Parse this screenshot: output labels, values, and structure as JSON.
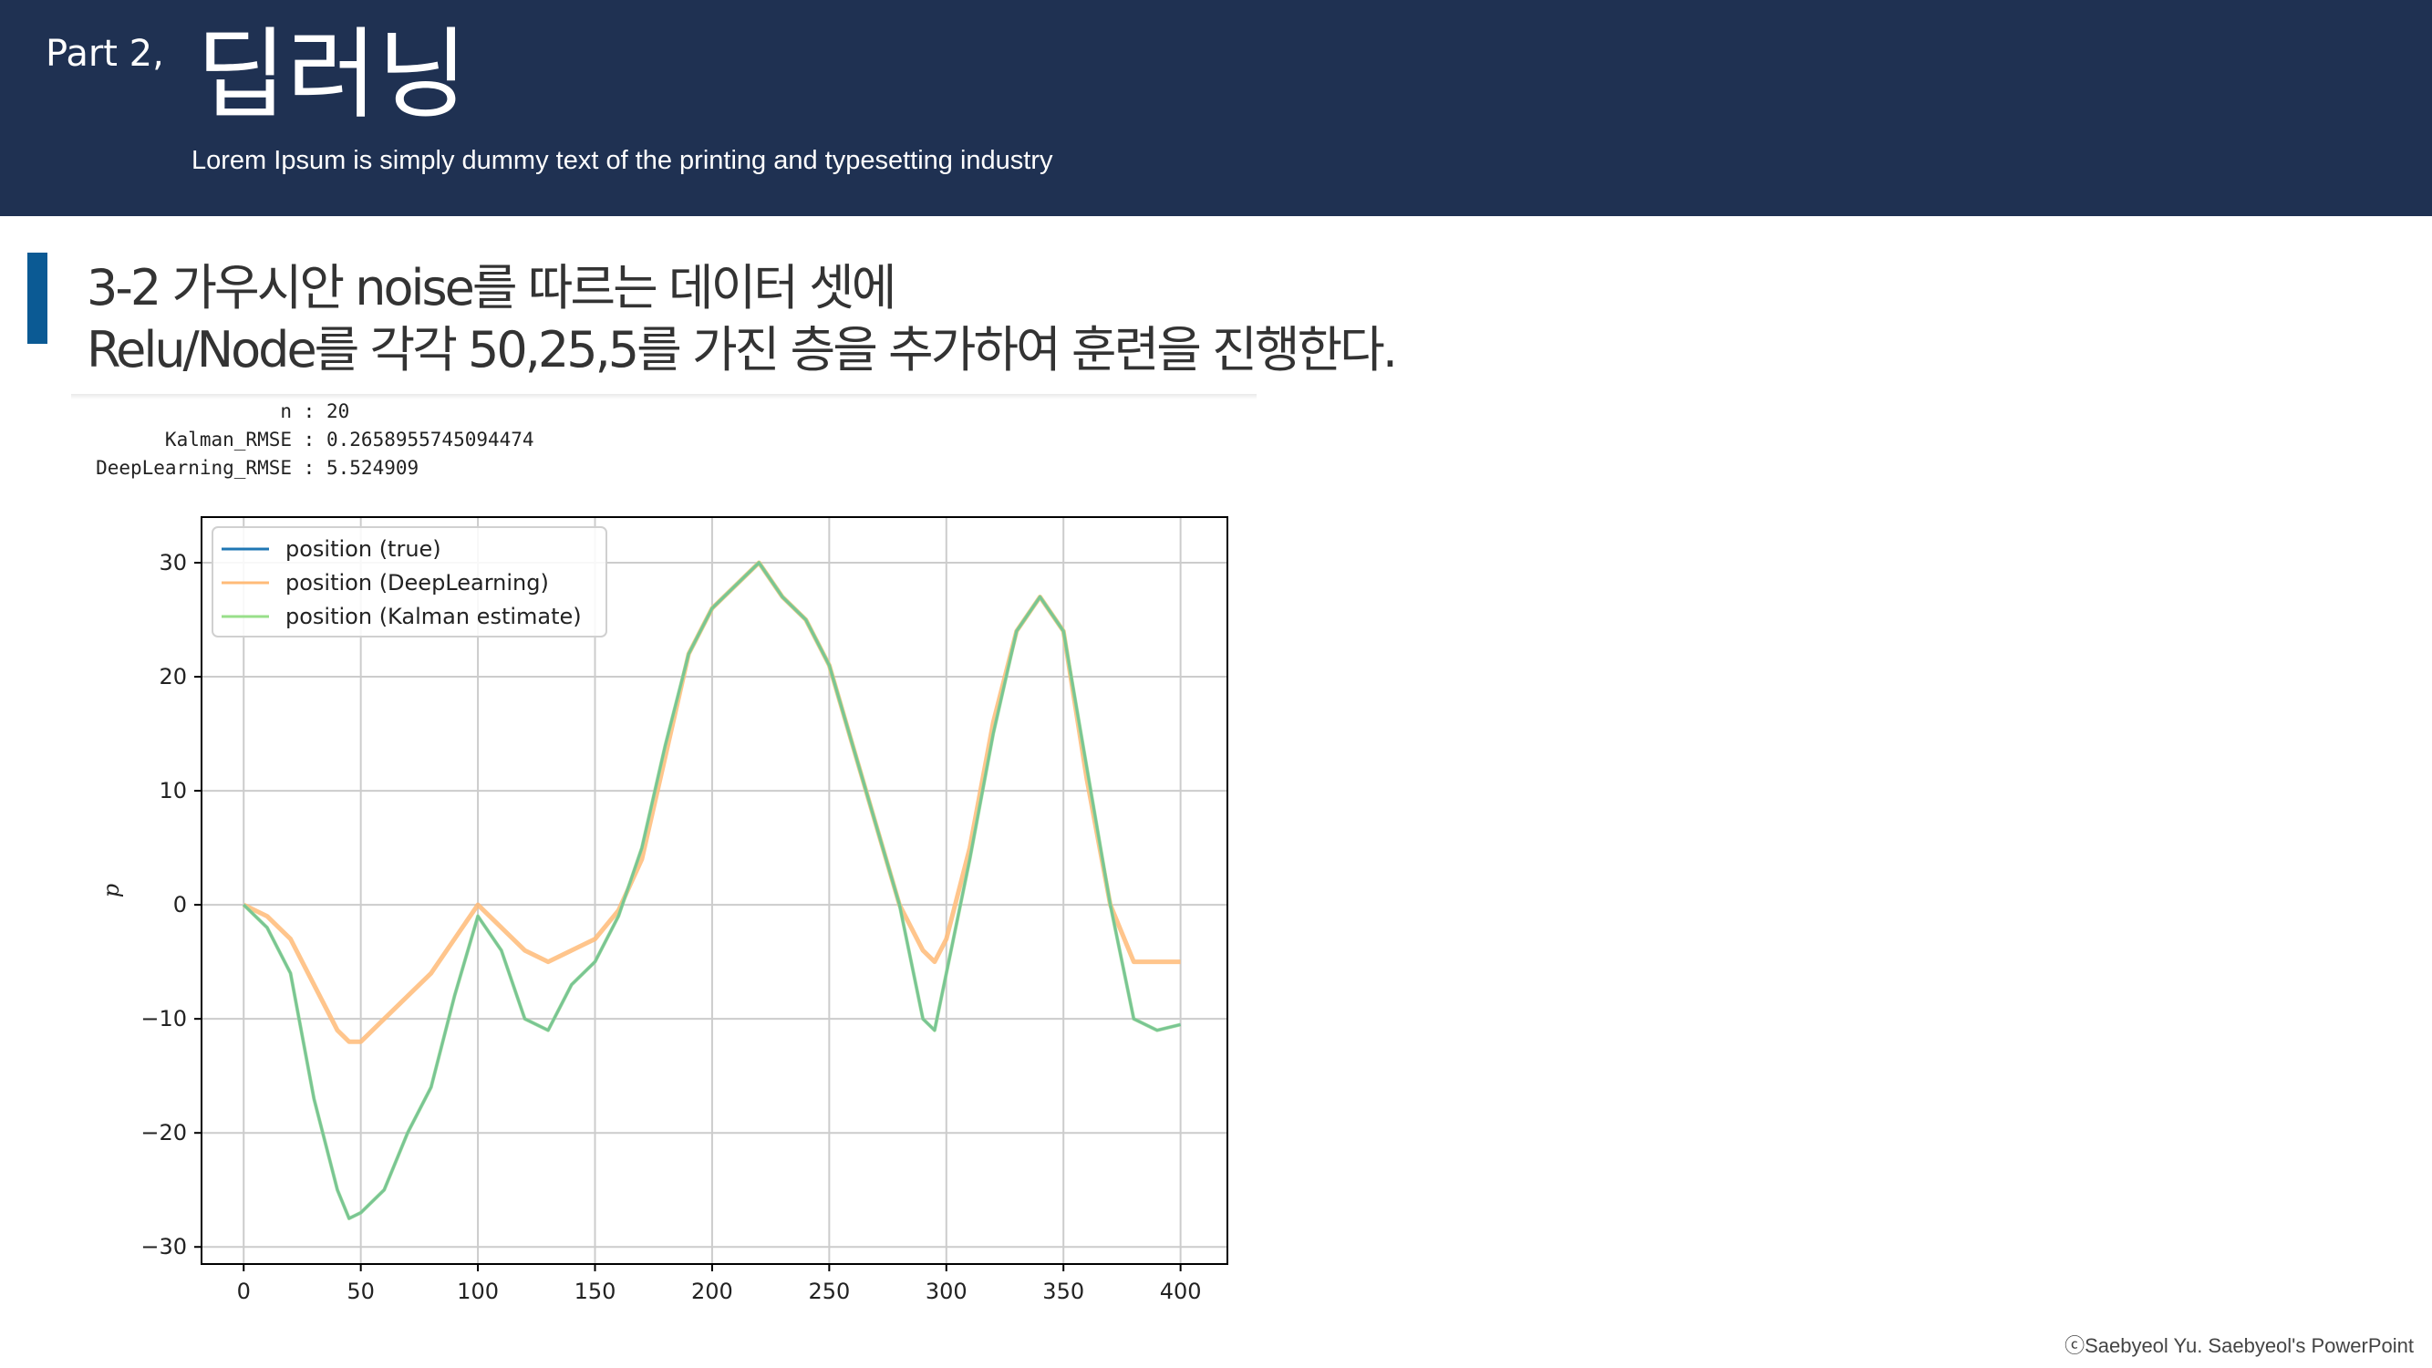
{
  "header": {
    "part": "Part 2,",
    "title": "딥러닝",
    "subtitle": "Lorem Ipsum is simply dummy text of the printing and typesetting industry"
  },
  "heading": {
    "line1": "3-2 가우시안 noise를 따르는 데이터 셋에",
    "line2": "Relu/Node를 각각 50,25,5를 가진 층을 추가하여 훈련을 진행한다."
  },
  "stats": [
    {
      "label": "n",
      "value": "20"
    },
    {
      "label": "Kalman_RMSE",
      "value": "0.2658955745094474"
    },
    {
      "label": "DeepLearning_RMSE",
      "value": "5.524909"
    }
  ],
  "footer": "ⓒSaebyeol Yu. Saebyeol's PowerPoint",
  "chart_data": {
    "type": "line",
    "xlabel": "",
    "ylabel": "p",
    "xlim": [
      -18,
      420
    ],
    "ylim": [
      -31.5,
      34
    ],
    "xticks": [
      0,
      50,
      100,
      150,
      200,
      250,
      300,
      350,
      400
    ],
    "yticks": [
      -30,
      -20,
      -10,
      0,
      10,
      20,
      30
    ],
    "xtick_labels": [
      "0",
      "50",
      "100",
      "150",
      "200",
      "250",
      "300",
      "350",
      "400"
    ],
    "ytick_labels": [
      "−30",
      "−20",
      "−10",
      "0",
      "10",
      "20",
      "30"
    ],
    "grid": true,
    "legend_position": "top-left",
    "x": [
      0,
      10,
      20,
      30,
      40,
      45,
      50,
      60,
      70,
      80,
      90,
      100,
      110,
      120,
      130,
      140,
      150,
      160,
      170,
      180,
      190,
      200,
      210,
      220,
      230,
      240,
      250,
      260,
      270,
      280,
      290,
      295,
      300,
      310,
      320,
      330,
      340,
      350,
      360,
      370,
      380,
      390,
      400
    ],
    "series": [
      {
        "name": "position (true)",
        "color": "#1f77b4",
        "values": [
          0,
          -2,
          -6,
          -17,
          -25,
          -27.5,
          -27,
          -25,
          -20,
          -16,
          -8,
          -1,
          -4,
          -10,
          -11,
          -7,
          -5,
          -1,
          5,
          14,
          22,
          26,
          28,
          30,
          27,
          25,
          21,
          14,
          7,
          0,
          -10,
          -11,
          -6,
          4,
          15,
          24,
          27,
          24,
          12,
          0,
          -10,
          -11,
          -10.5
        ]
      },
      {
        "name": "position (DeepLearning)",
        "color": "#ffbb78",
        "values": [
          0,
          -1,
          -3,
          -7,
          -11,
          -12,
          -12,
          -10,
          -8,
          -6,
          -3,
          0,
          -2,
          -4,
          -5,
          -4,
          -3,
          -0.5,
          4,
          13,
          22,
          26,
          28,
          30,
          27,
          25,
          21,
          14,
          7,
          0,
          -4,
          -5,
          -3,
          5,
          16,
          24,
          27,
          24,
          11,
          0,
          -5,
          -5,
          -5
        ]
      },
      {
        "name": "position (Kalman estimate)",
        "color": "#98df8a",
        "values": [
          0,
          -2,
          -6,
          -17,
          -25,
          -27.5,
          -27,
          -25,
          -20,
          -16,
          -8,
          -1,
          -4,
          -10,
          -11,
          -7,
          -5,
          -1,
          5,
          14,
          22,
          26,
          28,
          30,
          27,
          25,
          21,
          14,
          7,
          0,
          -10,
          -11,
          -6,
          4,
          15,
          24,
          27,
          24,
          12,
          0,
          -10,
          -11,
          -10.5
        ]
      }
    ]
  }
}
